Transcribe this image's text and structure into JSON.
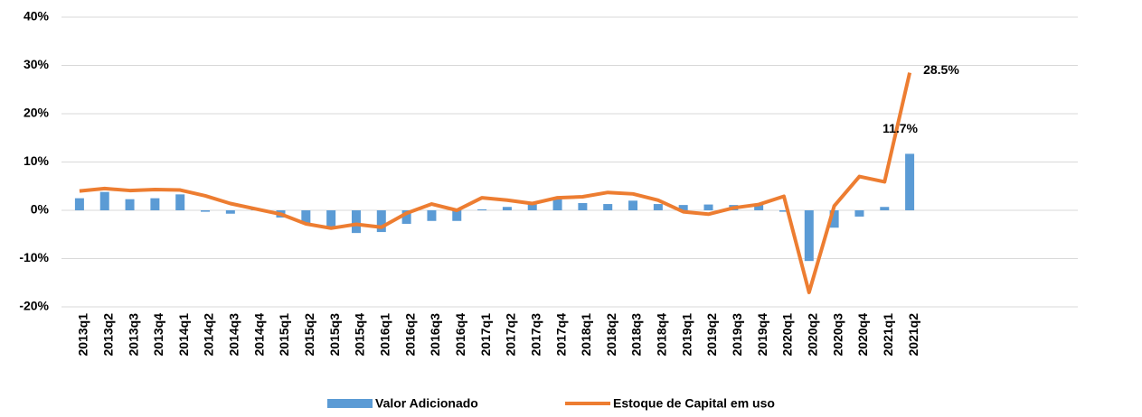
{
  "chart_data": {
    "type": "bar-line",
    "categories": [
      "2013q1",
      "2013q2",
      "2013q3",
      "2013q4",
      "2014q1",
      "2014q2",
      "2014q3",
      "2014q4",
      "2015q1",
      "2015q2",
      "2015q3",
      "2015q4",
      "2016q1",
      "2016q2",
      "2016q3",
      "2016q4",
      "2017q1",
      "2017q2",
      "2017q3",
      "2017q4",
      "2018q1",
      "2018q2",
      "2018q3",
      "2018q4",
      "2019q1",
      "2019q2",
      "2019q3",
      "2019q4",
      "2020q1",
      "2020q2",
      "2020q3",
      "2020q4",
      "2021q1",
      "2021q2"
    ],
    "series": [
      {
        "name": "Valor Adicionado",
        "type": "bar",
        "color": "#5b9bd5",
        "values": [
          2.5,
          3.8,
          2.3,
          2.5,
          3.3,
          -0.3,
          -0.7,
          0.1,
          -1.5,
          -2.8,
          -3.5,
          -4.7,
          -4.5,
          -2.8,
          -2.2,
          -2.2,
          0.2,
          0.7,
          1.2,
          2.3,
          1.5,
          1.3,
          2.0,
          1.3,
          1.1,
          1.2,
          1.1,
          1.2,
          -0.3,
          -10.5,
          -3.6,
          -1.3,
          0.7,
          11.7
        ],
        "value_labels": [
          null,
          null,
          null,
          null,
          null,
          null,
          null,
          null,
          null,
          null,
          null,
          null,
          null,
          null,
          null,
          null,
          null,
          null,
          null,
          null,
          null,
          null,
          null,
          null,
          null,
          null,
          null,
          null,
          null,
          null,
          null,
          null,
          null,
          "11.7%"
        ]
      },
      {
        "name": "Estoque de Capital em uso",
        "type": "line",
        "color": "#ed7d31",
        "values": [
          4.0,
          4.5,
          4.1,
          4.3,
          4.2,
          3.0,
          1.4,
          0.3,
          -0.8,
          -2.8,
          -3.7,
          -2.9,
          -3.5,
          -0.6,
          1.3,
          0.0,
          2.6,
          2.1,
          1.4,
          2.6,
          2.8,
          3.7,
          3.4,
          2.1,
          -0.3,
          -0.8,
          0.5,
          1.2,
          2.9,
          -17.0,
          0.9,
          7.0,
          5.9,
          28.5
        ],
        "value_labels": [
          null,
          null,
          null,
          null,
          null,
          null,
          null,
          null,
          null,
          null,
          null,
          null,
          null,
          null,
          null,
          null,
          null,
          null,
          null,
          null,
          null,
          null,
          null,
          null,
          null,
          null,
          null,
          null,
          null,
          null,
          null,
          null,
          null,
          "28.5%"
        ]
      }
    ],
    "ylim": [
      -20,
      40
    ],
    "yticks": [
      {
        "value": -20,
        "label": "-20%"
      },
      {
        "value": -10,
        "label": "-10%"
      },
      {
        "value": 0,
        "label": "0%"
      },
      {
        "value": 10,
        "label": "10%"
      },
      {
        "value": 20,
        "label": "20%"
      },
      {
        "value": 30,
        "label": "30%"
      },
      {
        "value": 40,
        "label": "40%"
      }
    ],
    "grid": true,
    "legend": "bottom"
  }
}
